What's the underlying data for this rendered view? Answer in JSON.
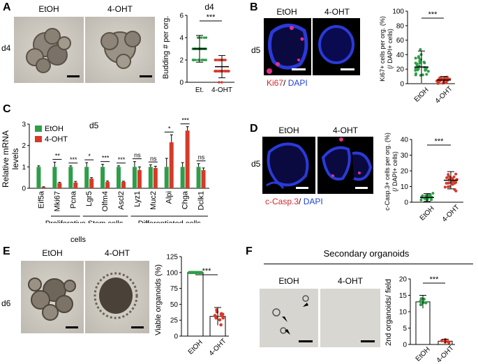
{
  "panels": {
    "A": {
      "label": "A",
      "group1": "EtOH",
      "group2": "4-OHT",
      "timepoint": "d4",
      "chart_data": {
        "type": "scatter",
        "title": "d4",
        "ylabel": "Budding # per org.",
        "categories": [
          "Et.",
          "4-OHT"
        ],
        "ylim": [
          0,
          6
        ],
        "yticks": [
          "0",
          "2",
          "4",
          "6"
        ],
        "means": [
          3.0,
          1.4
        ],
        "sd": [
          1.2,
          1.0
        ],
        "significance": "***"
      }
    },
    "B": {
      "label": "B",
      "group1": "EtOH",
      "group2": "4-OHT",
      "timepoint": "d5",
      "stain1": "Ki67",
      "stain_sep": "/",
      "stain2": "DAPI",
      "chart_data": {
        "type": "scatter",
        "ylabel": "Ki67+ cells per org. (%) (/ DAPI+ cells)",
        "categories": [
          "EtOH",
          "4-OHT"
        ],
        "ylim": [
          0,
          100
        ],
        "yticks": [
          "0",
          "20",
          "40",
          "60",
          "80",
          "100"
        ],
        "means": [
          23,
          5
        ],
        "sd": [
          22,
          5
        ],
        "significance": "***"
      }
    },
    "C": {
      "label": "C",
      "timepoint": "d5",
      "chart_data": {
        "type": "bar",
        "ylabel": "Relative mRNA levels",
        "ylim": [
          0,
          3
        ],
        "yticks": [
          "0",
          "1",
          "2",
          "3"
        ],
        "categories": [
          "Eif5a",
          "Mki67",
          "Pcna",
          "Lgr5",
          "Olfm4",
          "Ascl2",
          "Lyz1",
          "Muc2",
          "Alpi",
          "Chga",
          "Dclk1"
        ],
        "series": [
          {
            "name": "EtOH",
            "color": "#2e9e48",
            "values": [
              1.0,
              1.0,
              1.0,
              1.0,
              1.0,
              1.0,
              1.0,
              1.0,
              1.0,
              1.0,
              1.0
            ],
            "err": [
              0.05,
              0.22,
              0.05,
              0.2,
              0.12,
              0.05,
              0.25,
              0.1,
              0.4,
              0.2,
              0.15
            ]
          },
          {
            "name": "4-OHT",
            "color": "#d63a2a",
            "values": [
              0.05,
              0.25,
              0.27,
              0.45,
              0.3,
              0.3,
              0.85,
              0.95,
              2.15,
              2.7,
              0.85
            ],
            "err": [
              0.02,
              0.03,
              0.05,
              0.05,
              0.04,
              0.03,
              0.15,
              0.08,
              0.35,
              0.18,
              0.1
            ]
          }
        ],
        "significance": [
          "",
          "**",
          "***",
          "*",
          "***",
          "***",
          "ns",
          "ns",
          "*",
          "***",
          "ns"
        ],
        "groups": [
          {
            "label": "Proliferative cells",
            "start": 1,
            "end": 2
          },
          {
            "label": "Stem cells",
            "start": 3,
            "end": 5
          },
          {
            "label": "Differentiated cells",
            "start": 6,
            "end": 10
          }
        ],
        "legend_position": "top-left"
      }
    },
    "D": {
      "label": "D",
      "group1": "EtOH",
      "group2": "4-OHT",
      "timepoint": "d5",
      "stain1": "c-Casp.3",
      "stain_sep": "/",
      "stain2": "DAPI",
      "chart_data": {
        "type": "scatter",
        "ylabel": "c-Casp.3+ cells per org. (%) (/ DAPI+ cells)",
        "categories": [
          "EtOH",
          "4-OHT"
        ],
        "ylim": [
          0,
          40
        ],
        "yticks": [
          "0",
          "10",
          "20",
          "30",
          "40"
        ],
        "means": [
          3,
          14
        ],
        "sd": [
          2.5,
          5.5
        ],
        "significance": "***"
      }
    },
    "E": {
      "label": "E",
      "group1": "EtOH",
      "group2": "4-OHT",
      "timepoint": "d6",
      "chart_data": {
        "type": "bar",
        "ylabel": "Viable organoids (%)",
        "categories": [
          "EtOH",
          "4-OHT"
        ],
        "ylim": [
          0,
          125
        ],
        "yticks": [
          "0",
          "25",
          "50",
          "75",
          "100",
          "125"
        ],
        "values": [
          100,
          31
        ],
        "err": [
          0,
          14
        ],
        "significance": "***"
      }
    },
    "F": {
      "label": "F",
      "title": "Secondary organoids",
      "group1": "EtOH",
      "group2": "4-OHT",
      "chart_data": {
        "type": "bar",
        "ylabel": "2nd organoids/ field",
        "categories": [
          "EtOH",
          "4-OHT"
        ],
        "ylim": [
          0,
          20
        ],
        "yticks": [
          "0",
          "5",
          "10",
          "15",
          "20"
        ],
        "values": [
          13,
          1
        ],
        "err": [
          2,
          0.6
        ],
        "significance": "***"
      }
    }
  }
}
